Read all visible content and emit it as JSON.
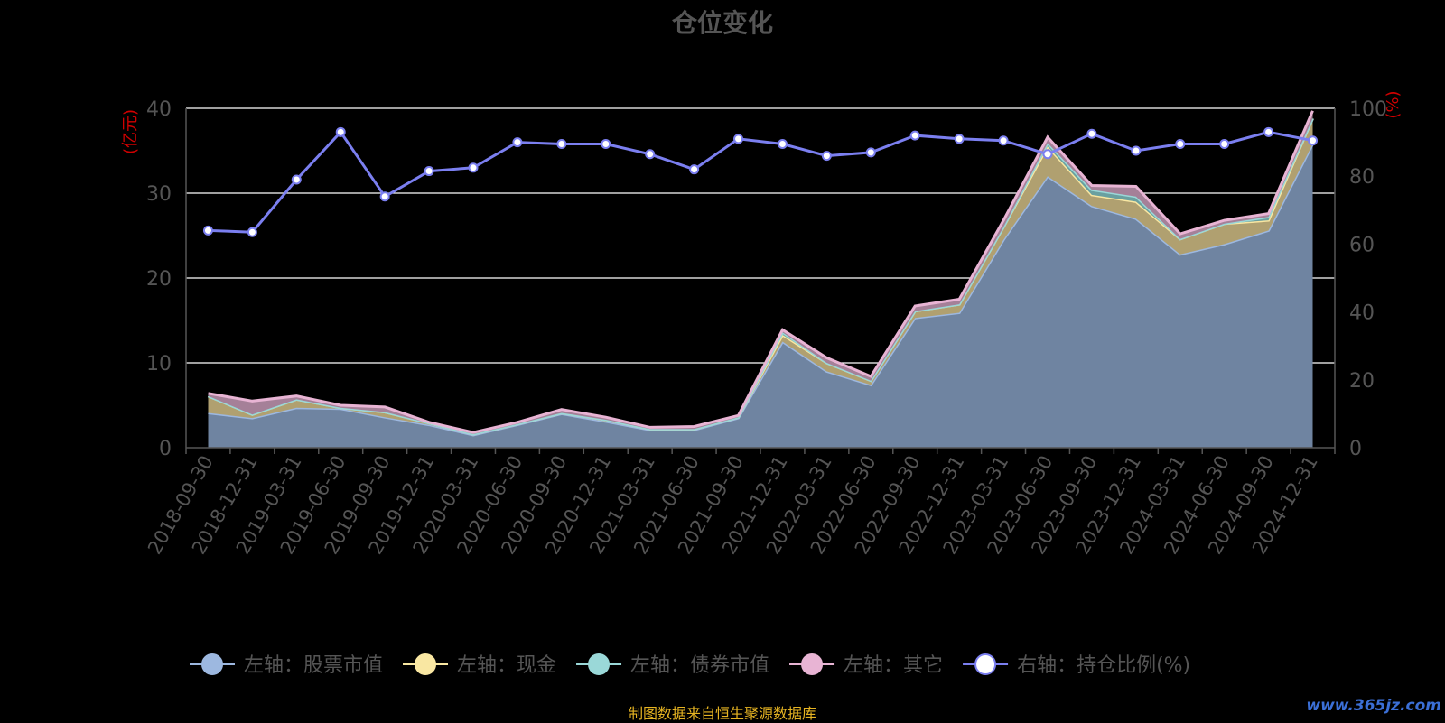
{
  "title": "仓位变化",
  "source_note": "制图数据来自恒生聚源数据库",
  "watermark": "www.365jz.com",
  "chart_data": {
    "type": "area",
    "stacked": true,
    "categories": [
      "2018-09-30",
      "2018-12-31",
      "2019-03-31",
      "2019-06-30",
      "2019-09-30",
      "2019-12-31",
      "2020-03-31",
      "2020-06-30",
      "2020-09-30",
      "2020-12-31",
      "2021-03-31",
      "2021-06-30",
      "2021-09-30",
      "2021-12-31",
      "2022-03-31",
      "2022-06-30",
      "2022-09-30",
      "2022-12-31",
      "2023-03-31",
      "2023-06-30",
      "2023-09-30",
      "2023-12-31",
      "2024-03-31",
      "2024-06-30",
      "2024-09-30",
      "2024-12-31"
    ],
    "left_axis": {
      "label": "(亿元)",
      "ylim": [
        0,
        40
      ],
      "ticks": [
        0,
        10,
        20,
        30,
        40
      ]
    },
    "right_axis": {
      "label": "(%)",
      "ylim": [
        0,
        100
      ],
      "ticks": [
        0,
        20,
        40,
        60,
        80,
        100
      ]
    },
    "series": [
      {
        "name": "左轴：股票市值",
        "axis": "left",
        "color": "#9db8e0",
        "values": [
          4.1,
          3.5,
          4.7,
          4.6,
          3.6,
          2.7,
          1.5,
          2.7,
          4.0,
          3.1,
          2.1,
          2.1,
          3.5,
          12.5,
          9.0,
          7.4,
          15.3,
          15.9,
          24.5,
          32.0,
          28.5,
          27.0,
          22.8,
          24.0,
          25.6,
          35.8
        ]
      },
      {
        "name": "左轴：现金",
        "axis": "left",
        "color": "#f9e7a2",
        "values": [
          2.0,
          0.4,
          1.0,
          0.1,
          0.6,
          0.2,
          0.1,
          0.1,
          0.1,
          0.2,
          0.1,
          0.1,
          0.1,
          0.8,
          1.0,
          0.5,
          0.8,
          1.0,
          1.5,
          3.5,
          1.3,
          2.0,
          1.8,
          2.4,
          1.2,
          3.0
        ]
      },
      {
        "name": "左轴：债券市值",
        "axis": "left",
        "color": "#9ad8d8",
        "values": [
          0,
          0,
          0,
          0,
          0,
          0,
          0,
          0,
          0,
          0,
          0,
          0,
          0,
          0.3,
          0,
          0,
          0,
          0,
          0,
          0.4,
          0.6,
          0.6,
          0,
          0,
          0.4,
          0
        ]
      },
      {
        "name": "左轴：其它",
        "axis": "left",
        "color": "#e8b4d4",
        "values": [
          0.3,
          1.6,
          0.4,
          0.3,
          0.6,
          0.1,
          0.2,
          0.2,
          0.4,
          0.3,
          0.2,
          0.3,
          0.2,
          0.3,
          0.6,
          0.5,
          0.6,
          0.6,
          0.8,
          0.7,
          0.5,
          1.2,
          0.6,
          0.4,
          0.4,
          0.9
        ]
      },
      {
        "name": "右轴：持仓比例(%)",
        "axis": "right",
        "type": "line",
        "color": "#7b7ff0",
        "values": [
          64,
          63.5,
          79,
          93,
          74,
          81.5,
          82.5,
          90,
          89.5,
          89.5,
          86.5,
          82,
          91,
          89.5,
          86,
          87,
          92,
          91,
          90.5,
          86.5,
          92.5,
          87.5,
          89.5,
          89.5,
          93,
          90.5
        ]
      }
    ],
    "legend_position": "bottom-center",
    "grid": true
  }
}
